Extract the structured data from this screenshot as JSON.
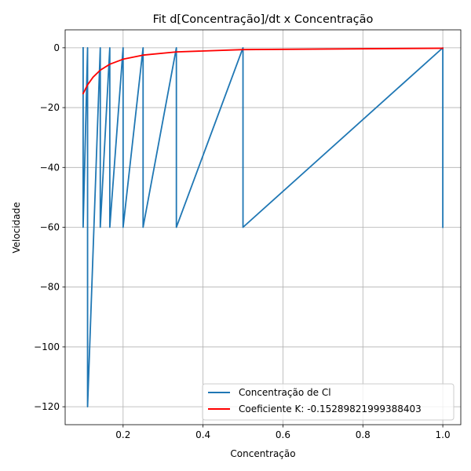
{
  "chart_data": {
    "type": "line",
    "title": "Fit d[Concentração]/dt x Concentração",
    "xlabel": "Concentração",
    "ylabel": "Velocidade",
    "xlim": [
      0.055,
      1.045
    ],
    "ylim": [
      -126,
      6
    ],
    "grid": true,
    "legend_position": "bottom-right",
    "xticks": [
      0.2,
      0.4,
      0.6,
      0.8,
      1.0
    ],
    "xtick_labels": [
      "0.2",
      "0.4",
      "0.6",
      "0.8",
      "1.0"
    ],
    "yticks": [
      0,
      -20,
      -40,
      -60,
      -80,
      -100,
      -120
    ],
    "ytick_labels": [
      "0",
      "−20",
      "−40",
      "−60",
      "−80",
      "−100",
      "−120"
    ],
    "series": [
      {
        "name": "Concentração de Cl",
        "color": "#1f77b4",
        "x": [
          1.0,
          1.0,
          0.5,
          0.5,
          0.3333,
          0.3333,
          0.25,
          0.25,
          0.2,
          0.2,
          0.1667,
          0.1667,
          0.1429,
          0.1429,
          0.1111,
          0.1111,
          0.1,
          0.1
        ],
        "y": [
          -60,
          0,
          -60,
          0,
          -60,
          0,
          -60,
          0,
          -60,
          0,
          -60,
          0,
          -60,
          0,
          -120,
          0,
          -60,
          0
        ]
      },
      {
        "name": "Coeficiente K: -0.15289821999388403",
        "color": "#ff0000",
        "x": [
          0.1,
          0.1111,
          0.125,
          0.1429,
          0.1667,
          0.2,
          0.25,
          0.3333,
          0.5,
          1.0
        ],
        "y": [
          -15.29,
          -12.39,
          -9.79,
          -7.49,
          -5.5,
          -3.82,
          -2.45,
          -1.38,
          -0.61,
          -0.15
        ]
      }
    ]
  }
}
